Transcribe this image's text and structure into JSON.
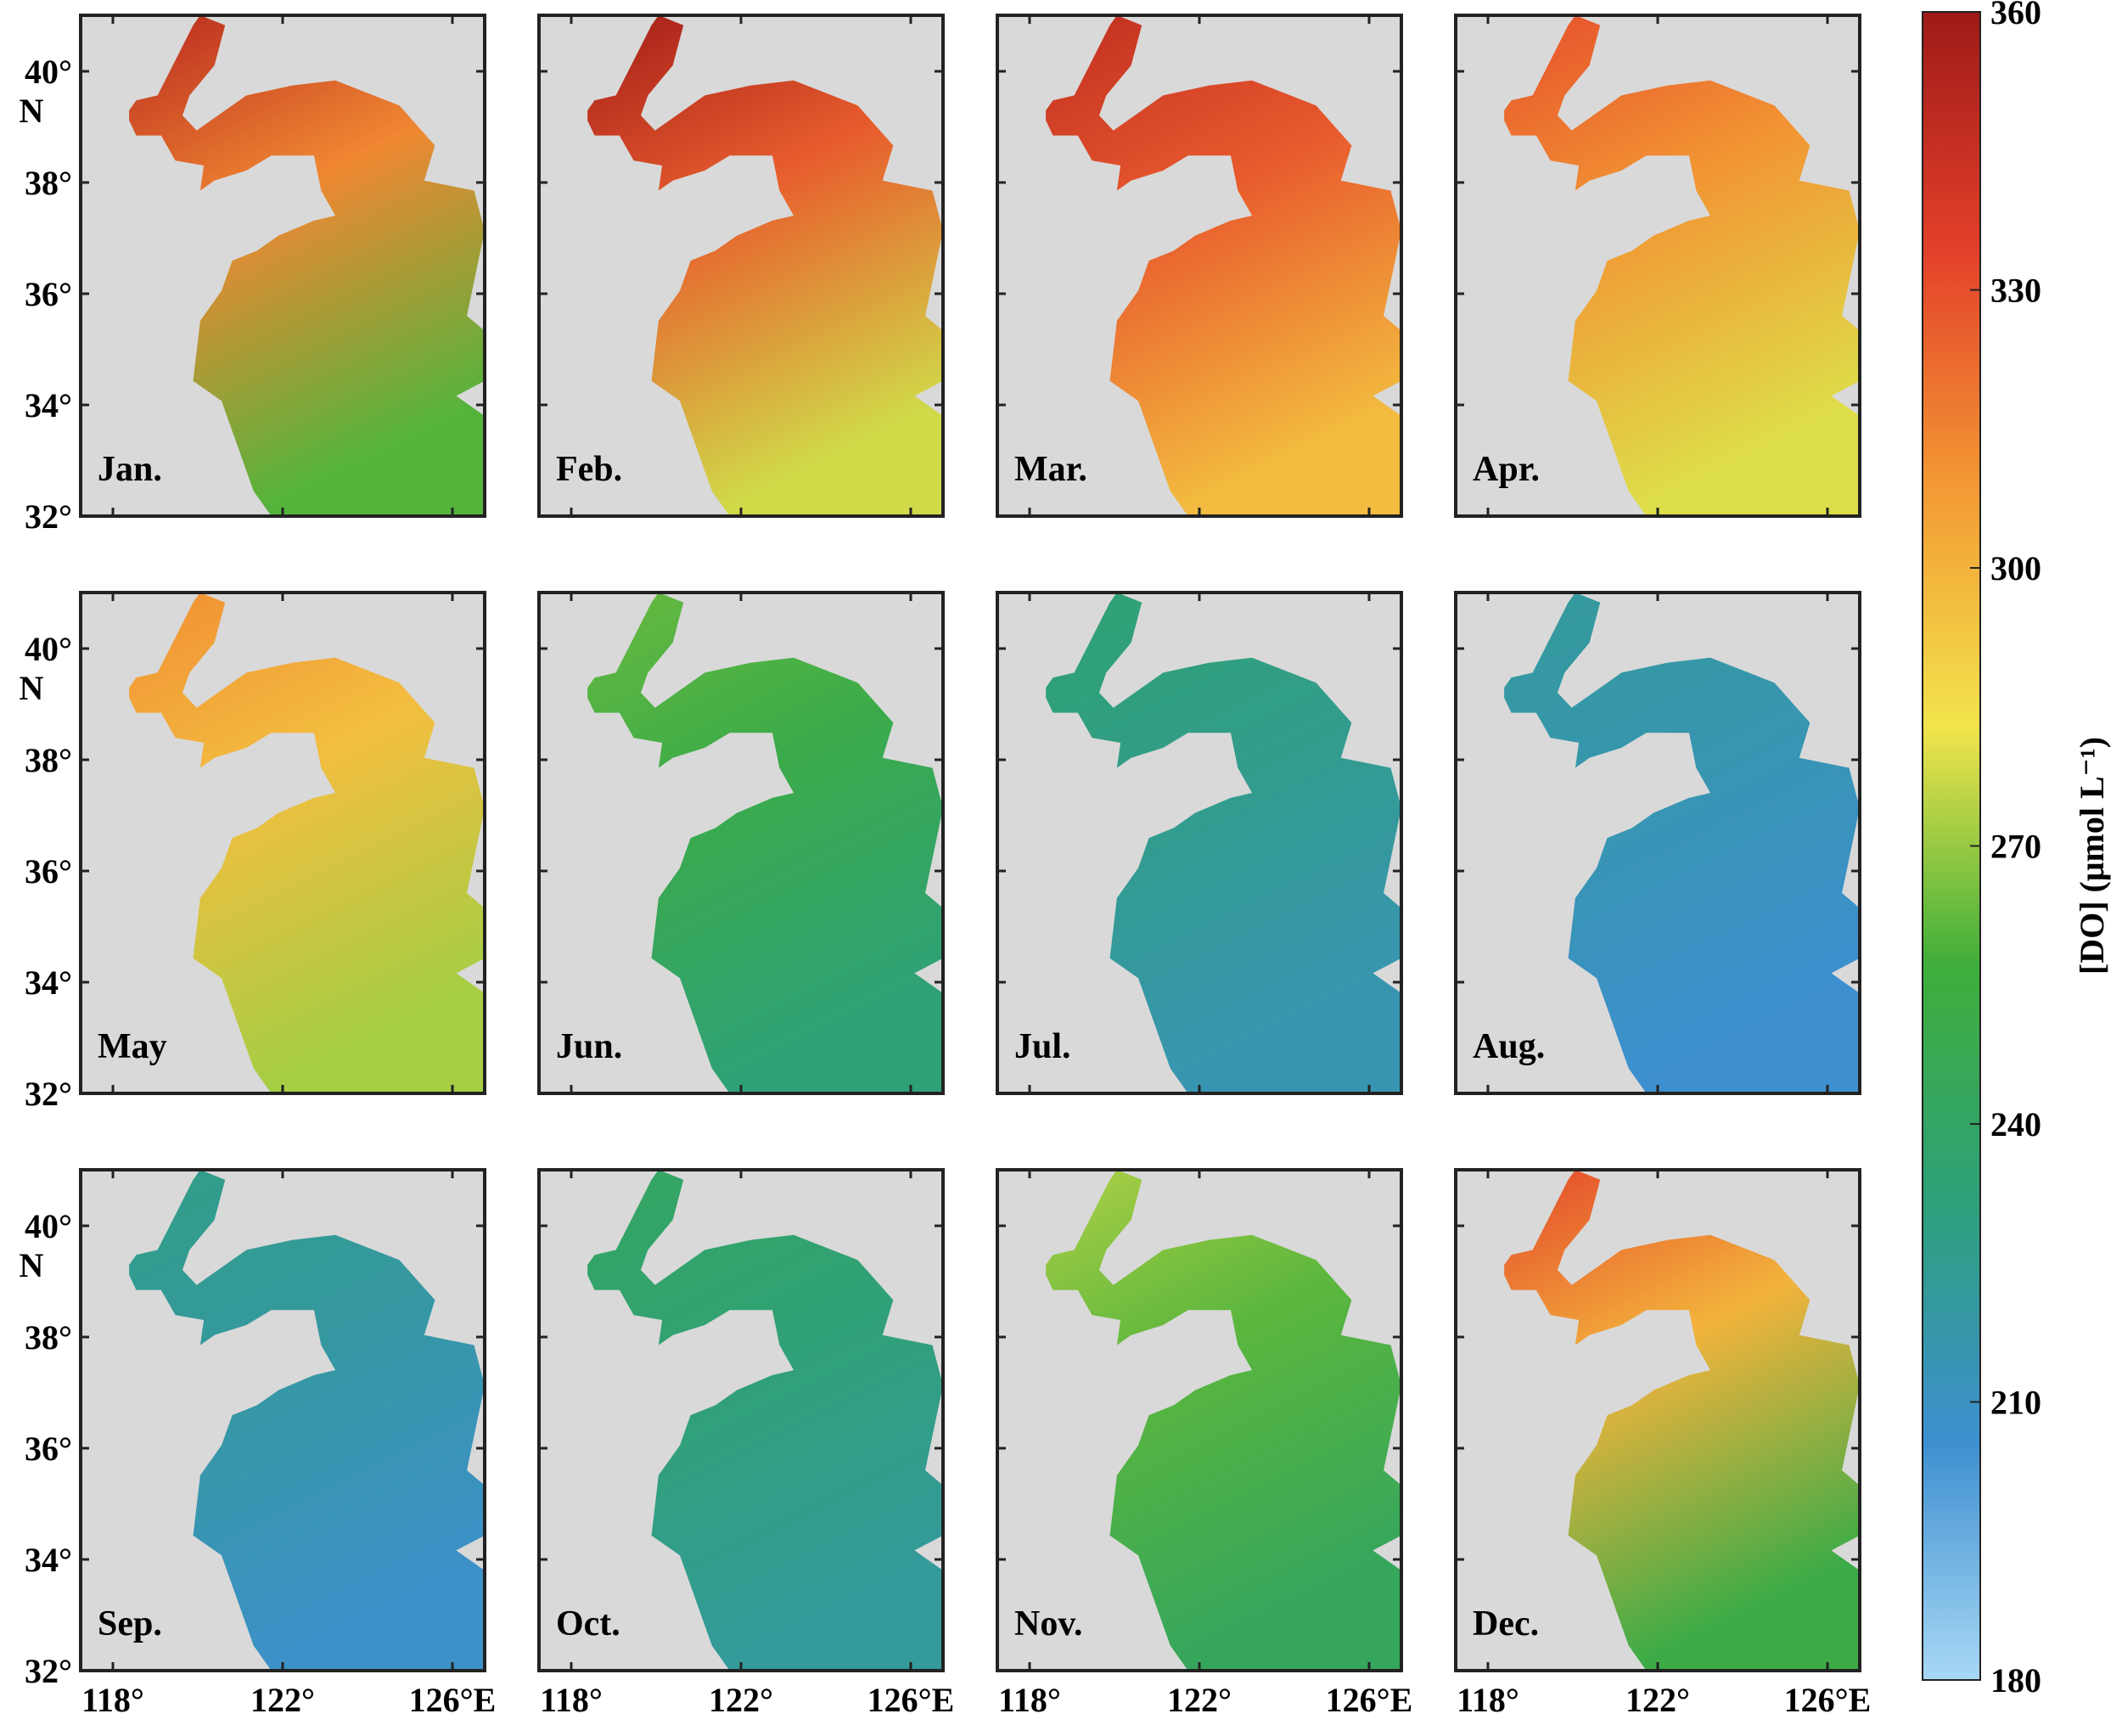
{
  "panels": [
    {
      "label": "Jan.",
      "mean_do": 305,
      "gradient": 45
    },
    {
      "label": "Feb.",
      "mean_do": 318,
      "gradient": 40
    },
    {
      "label": "Mar.",
      "mean_do": 322,
      "gradient": 25
    },
    {
      "label": "Apr.",
      "mean_do": 305,
      "gradient": 25
    },
    {
      "label": "May",
      "mean_do": 292,
      "gradient": 20
    },
    {
      "label": "Jun.",
      "mean_do": 248,
      "gradient": 15
    },
    {
      "label": "Jul.",
      "mean_do": 225,
      "gradient": 10
    },
    {
      "label": "Aug.",
      "mean_do": 214,
      "gradient": 8
    },
    {
      "label": "Sep.",
      "mean_do": 218,
      "gradient": 10
    },
    {
      "label": "Oct.",
      "mean_do": 232,
      "gradient": 10
    },
    {
      "label": "Nov.",
      "mean_do": 258,
      "gradient": 15
    },
    {
      "label": "Dec.",
      "mean_do": 292,
      "gradient": 40
    }
  ],
  "axes": {
    "lat_ticks": [
      "40°",
      "38°",
      "36°",
      "34°",
      "32°"
    ],
    "lat_unit": "N",
    "lon_ticks": [
      "118°",
      "122°",
      "126°E"
    ],
    "lat_range": [
      32,
      41
    ],
    "lon_range": [
      117,
      127
    ]
  },
  "colorbar": {
    "min": 180,
    "max": 360,
    "ticks": [
      "360",
      "330",
      "300",
      "270",
      "240",
      "210",
      "180"
    ],
    "title": "[DO] (μmol L⁻¹)",
    "colors": [
      "#a8d8f5",
      "#3d8fd0",
      "#2ea07a",
      "#3fae3a",
      "#f2e44c",
      "#f39a34",
      "#e3402a",
      "#9e1a18"
    ]
  },
  "colors": {
    "land": "#d9d9d9",
    "frame": "#222222"
  }
}
